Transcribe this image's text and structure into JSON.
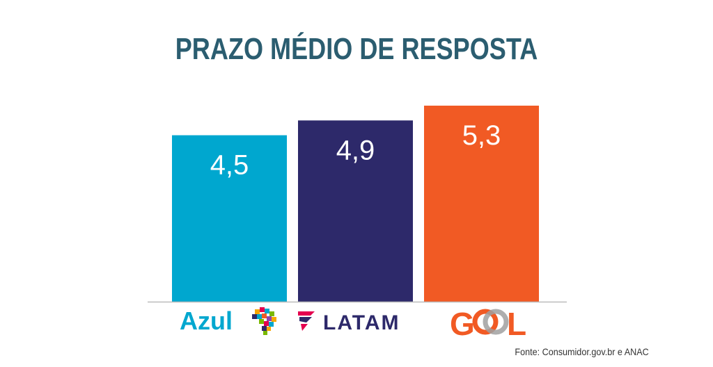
{
  "title": "PRAZO MÉDIO DE RESPOSTA",
  "source": "Fonte: Consumidor.gov.br e ANAC",
  "colors": {
    "title": "#2b5d70",
    "azul": "#00a7cf",
    "latam": "#2d296a",
    "gol": "#f15a24",
    "latam_logo_pink": "#e4004f",
    "axis": "#bbbbbb"
  },
  "chart_data": {
    "type": "bar",
    "title": "PRAZO MÉDIO DE RESPOSTA",
    "categories": [
      "Azul",
      "LATAM",
      "GOL"
    ],
    "values": [
      4.5,
      4.9,
      5.3
    ],
    "value_labels": [
      "4,5",
      "4,9",
      "5,3"
    ],
    "xlabel": "",
    "ylabel": "",
    "ylim": [
      0,
      5.3
    ],
    "grid": false,
    "legend": "none"
  },
  "logos": {
    "azul": "Azul",
    "latam": "LATAM",
    "gol_left": "G",
    "gol_right": "L"
  },
  "icons": {
    "azul": "brazil-map-icon",
    "latam": "latam-swoosh-icon",
    "gol": "gol-circles-icon"
  }
}
